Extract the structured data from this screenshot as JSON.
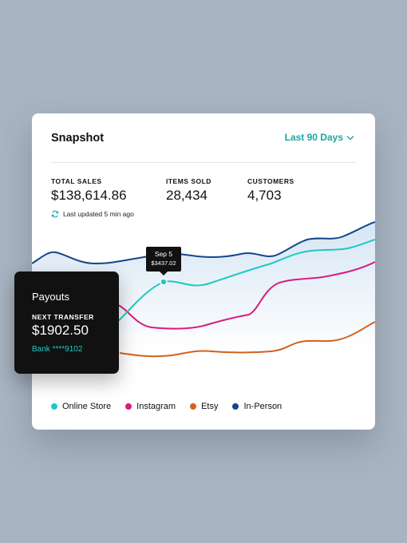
{
  "snapshot": {
    "title": "Snapshot",
    "range_label": "Last 90 Days",
    "stats": [
      {
        "label": "TOTAL SALES",
        "value": "$138,614.86"
      },
      {
        "label": "ITEMS SOLD",
        "value": "28,434"
      },
      {
        "label": "CUSTOMERS",
        "value": "4,703"
      }
    ],
    "updated_text": "Last updated 5 min ago",
    "tooltip": {
      "date": "Sep 5",
      "value": "$3437.02"
    },
    "legend": [
      {
        "label": "Online Store",
        "color": "#1ccac5"
      },
      {
        "label": "Instagram",
        "color": "#d91c7f"
      },
      {
        "label": "Etsy",
        "color": "#d4601f"
      },
      {
        "label": "In-Person",
        "color": "#14468f"
      }
    ]
  },
  "payouts": {
    "title": "Payouts",
    "label": "NEXT TRANSFER",
    "amount": "$1902.50",
    "bank": "Bank ****9102"
  },
  "icons": {
    "range_chevron": "chevron-down-icon",
    "refresh": "refresh-icon"
  },
  "colors": {
    "accent": "#1aa7a3",
    "online_store": "#1ccac5",
    "instagram": "#d91c7f",
    "etsy": "#d4601f",
    "in_person": "#14468f"
  }
}
